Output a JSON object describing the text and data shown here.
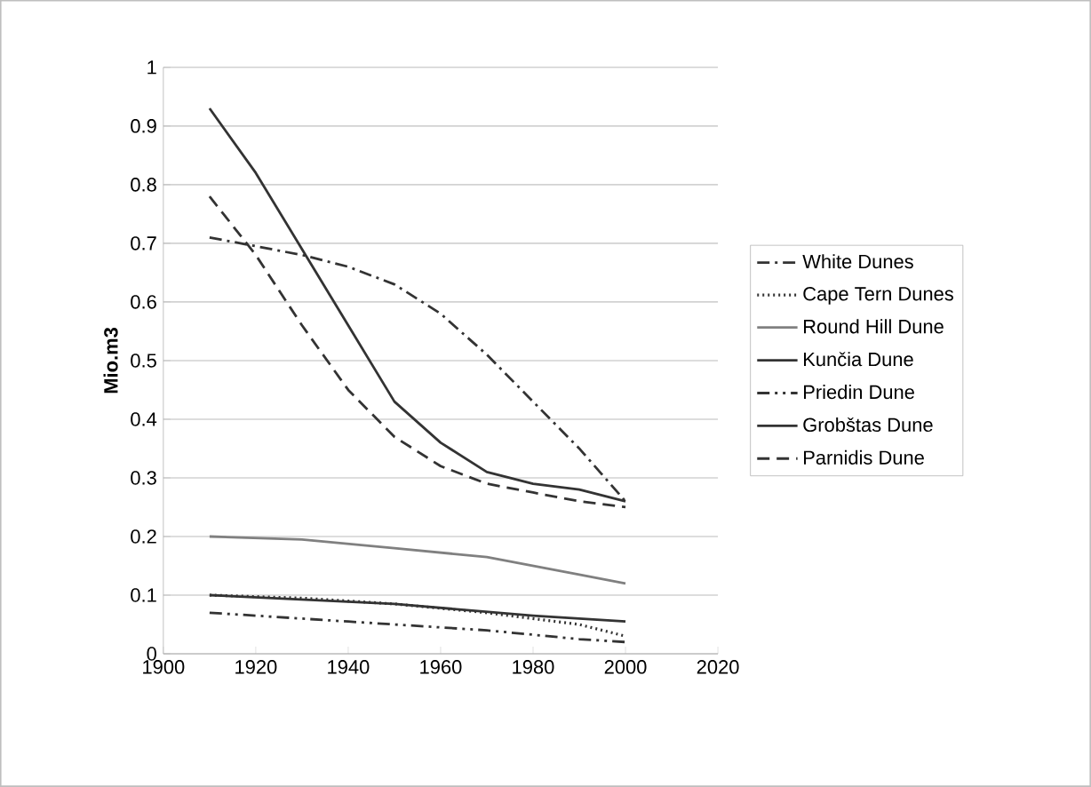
{
  "chart_data": {
    "type": "line",
    "ylabel": "Mio.m3",
    "xlim": [
      1900,
      2020
    ],
    "xticks": [
      1900,
      1920,
      1940,
      1960,
      1980,
      2000,
      2020
    ],
    "ylim": [
      0,
      1
    ],
    "yticks": [
      0,
      0.1,
      0.2,
      0.3,
      0.4,
      0.5,
      0.6,
      0.7,
      0.8,
      0.9,
      1
    ],
    "grid": "y",
    "legend": "right",
    "marker": "none",
    "series": [
      {
        "name": "White Dunes",
        "color": "#333333",
        "line_style": "dashdot",
        "x": [
          1910,
          1920,
          1930,
          1940,
          1950,
          1960,
          1970,
          1980,
          1990,
          2000
        ],
        "values": [
          0.71,
          0.695,
          0.68,
          0.66,
          0.63,
          0.58,
          0.51,
          0.43,
          0.35,
          0.26
        ]
      },
      {
        "name": "Cape Tern Dunes",
        "color": "#333333",
        "line_style": "dotted",
        "x": [
          1910,
          1930,
          1950,
          1970,
          1990,
          2000
        ],
        "values": [
          0.1,
          0.095,
          0.085,
          0.07,
          0.05,
          0.03
        ]
      },
      {
        "name": "Round Hill Dune",
        "color": "#808080",
        "line_style": "solid",
        "x": [
          1910,
          1930,
          1950,
          1970,
          1990,
          2000
        ],
        "values": [
          0.2,
          0.195,
          0.18,
          0.165,
          0.135,
          0.12
        ]
      },
      {
        "name": "Kunčia Dune",
        "color": "#333333",
        "line_style": "solid",
        "x": [
          1910,
          1920,
          1930,
          1940,
          1950,
          1960,
          1970,
          1980,
          1990,
          2000
        ],
        "values": [
          0.93,
          0.82,
          0.69,
          0.56,
          0.43,
          0.36,
          0.31,
          0.29,
          0.28,
          0.26
        ]
      },
      {
        "name": "Priedin Dune",
        "color": "#333333",
        "line_style": "dashdotdot",
        "x": [
          1910,
          1940,
          1970,
          1990,
          2000
        ],
        "values": [
          0.07,
          0.055,
          0.04,
          0.025,
          0.02
        ]
      },
      {
        "name": "Grobštas Dune",
        "color": "#333333",
        "line_style": "solid",
        "x": [
          1910,
          1950,
          1980,
          2000
        ],
        "values": [
          0.1,
          0.085,
          0.065,
          0.055
        ]
      },
      {
        "name": "Parnidis Dune",
        "color": "#333333",
        "line_style": "dashed",
        "x": [
          1910,
          1920,
          1930,
          1940,
          1950,
          1960,
          1970,
          1980,
          1990,
          2000
        ],
        "values": [
          0.78,
          0.68,
          0.56,
          0.45,
          0.37,
          0.32,
          0.29,
          0.275,
          0.26,
          0.25
        ]
      }
    ]
  }
}
